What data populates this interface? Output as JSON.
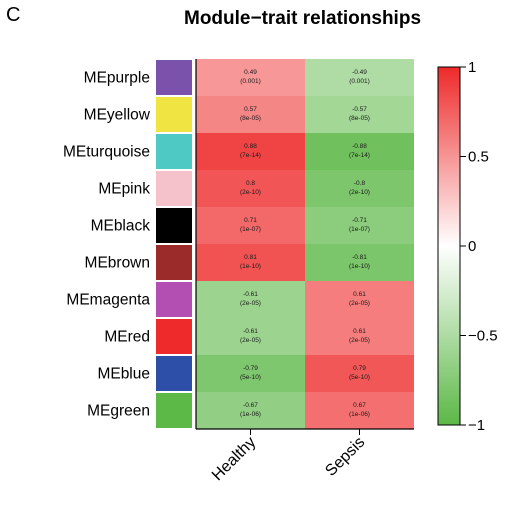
{
  "panel_label": "C",
  "chart_data": {
    "type": "heatmap",
    "title": "Module−trait relationships",
    "rows": [
      {
        "name": "MEpurple",
        "color": "#7b52ab",
        "values": [
          0.49,
          -0.49
        ],
        "texts": [
          "0.49\n(0.001)",
          "-0.49\n(0.001)"
        ]
      },
      {
        "name": "MEyellow",
        "color": "#f0e442",
        "values": [
          0.57,
          -0.57
        ],
        "texts": [
          "0.57\n(8e-05)",
          "-0.57\n(8e-05)"
        ]
      },
      {
        "name": "MEturquoise",
        "color": "#4fc9c4",
        "values": [
          0.88,
          -0.88
        ],
        "texts": [
          "0.88\n(7e-14)",
          "-0.88\n(7e-14)"
        ]
      },
      {
        "name": "MEpink",
        "color": "#f5c2cc",
        "values": [
          0.8,
          -0.8
        ],
        "texts": [
          "0.8\n(2e-10)",
          "-0.8\n(2e-10)"
        ]
      },
      {
        "name": "MEblack",
        "color": "#000000",
        "values": [
          0.71,
          -0.71
        ],
        "texts": [
          "0.71\n(1e-07)",
          "-0.71\n(1e-07)"
        ]
      },
      {
        "name": "MEbrown",
        "color": "#9b2b2b",
        "values": [
          0.81,
          -0.81
        ],
        "texts": [
          "0.81\n(1e-10)",
          "-0.81\n(1e-10)"
        ]
      },
      {
        "name": "MEmagenta",
        "color": "#b34fb2",
        "values": [
          -0.61,
          0.61
        ],
        "texts": [
          "-0.61\n(2e-05)",
          "0.61\n(2e-05)"
        ]
      },
      {
        "name": "MEred",
        "color": "#ee2a2a",
        "values": [
          -0.61,
          0.61
        ],
        "texts": [
          "-0.61\n(2e-05)",
          "0.61\n(2e-05)"
        ]
      },
      {
        "name": "MEblue",
        "color": "#2e4fa8",
        "values": [
          -0.79,
          0.79
        ],
        "texts": [
          "-0.79\n(5e-10)",
          "0.79\n(5e-10)"
        ]
      },
      {
        "name": "MEgreen",
        "color": "#5cb847",
        "values": [
          -0.67,
          0.67
        ],
        "texts": [
          "-0.67\n(1e-06)",
          "0.67\n(1e-06)"
        ]
      }
    ],
    "columns": [
      "Healthy",
      "Sepsis"
    ],
    "colorbar": {
      "min": -1,
      "max": 1,
      "ticks": [
        1,
        0.5,
        0,
        -0.5,
        -1
      ],
      "tick_labels": [
        "1",
        "0.5",
        "0",
        "−0.5",
        "−1"
      ],
      "low_color": "#5cb847",
      "mid_color": "#ffffff",
      "high_color": "#ee2a2a"
    }
  }
}
